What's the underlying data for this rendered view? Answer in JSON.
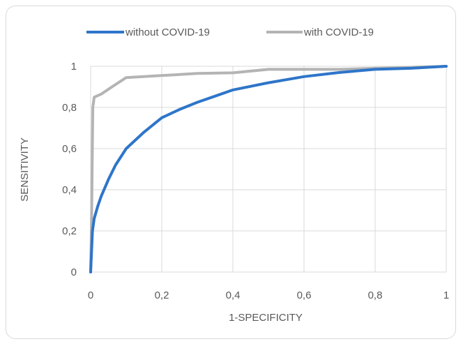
{
  "chart_data": {
    "type": "line",
    "title": "",
    "xlabel": "1-SPECIFICITY",
    "ylabel": "SENSITIVITY",
    "xlim": [
      0,
      1
    ],
    "ylim": [
      0,
      1
    ],
    "x_ticks": [
      "0",
      "0,2",
      "0,4",
      "0,6",
      "0,8",
      "1"
    ],
    "y_ticks": [
      "0",
      "0,2",
      "0,4",
      "0,6",
      "0,8",
      "1"
    ],
    "grid": true,
    "legend_position": "top",
    "series": [
      {
        "name": "without COVID-19",
        "color": "#2e75c9",
        "points": [
          [
            0,
            0
          ],
          [
            0.005,
            0.2
          ],
          [
            0.01,
            0.26
          ],
          [
            0.02,
            0.32
          ],
          [
            0.03,
            0.37
          ],
          [
            0.05,
            0.45
          ],
          [
            0.07,
            0.52
          ],
          [
            0.1,
            0.6
          ],
          [
            0.15,
            0.68
          ],
          [
            0.2,
            0.75
          ],
          [
            0.25,
            0.79
          ],
          [
            0.3,
            0.825
          ],
          [
            0.35,
            0.855
          ],
          [
            0.4,
            0.885
          ],
          [
            0.5,
            0.92
          ],
          [
            0.6,
            0.95
          ],
          [
            0.7,
            0.97
          ],
          [
            0.8,
            0.985
          ],
          [
            0.9,
            0.99
          ],
          [
            1.0,
            1.0
          ]
        ]
      },
      {
        "name": "with COVID-19",
        "color": "#b4b4b4",
        "points": [
          [
            0,
            0
          ],
          [
            0.003,
            0.3
          ],
          [
            0.006,
            0.8
          ],
          [
            0.01,
            0.85
          ],
          [
            0.03,
            0.865
          ],
          [
            0.06,
            0.9
          ],
          [
            0.1,
            0.945
          ],
          [
            0.2,
            0.955
          ],
          [
            0.3,
            0.965
          ],
          [
            0.4,
            0.968
          ],
          [
            0.5,
            0.985
          ],
          [
            0.6,
            0.985
          ],
          [
            0.7,
            0.985
          ],
          [
            0.8,
            0.99
          ],
          [
            0.9,
            0.995
          ],
          [
            1.0,
            1.0
          ]
        ]
      }
    ]
  }
}
